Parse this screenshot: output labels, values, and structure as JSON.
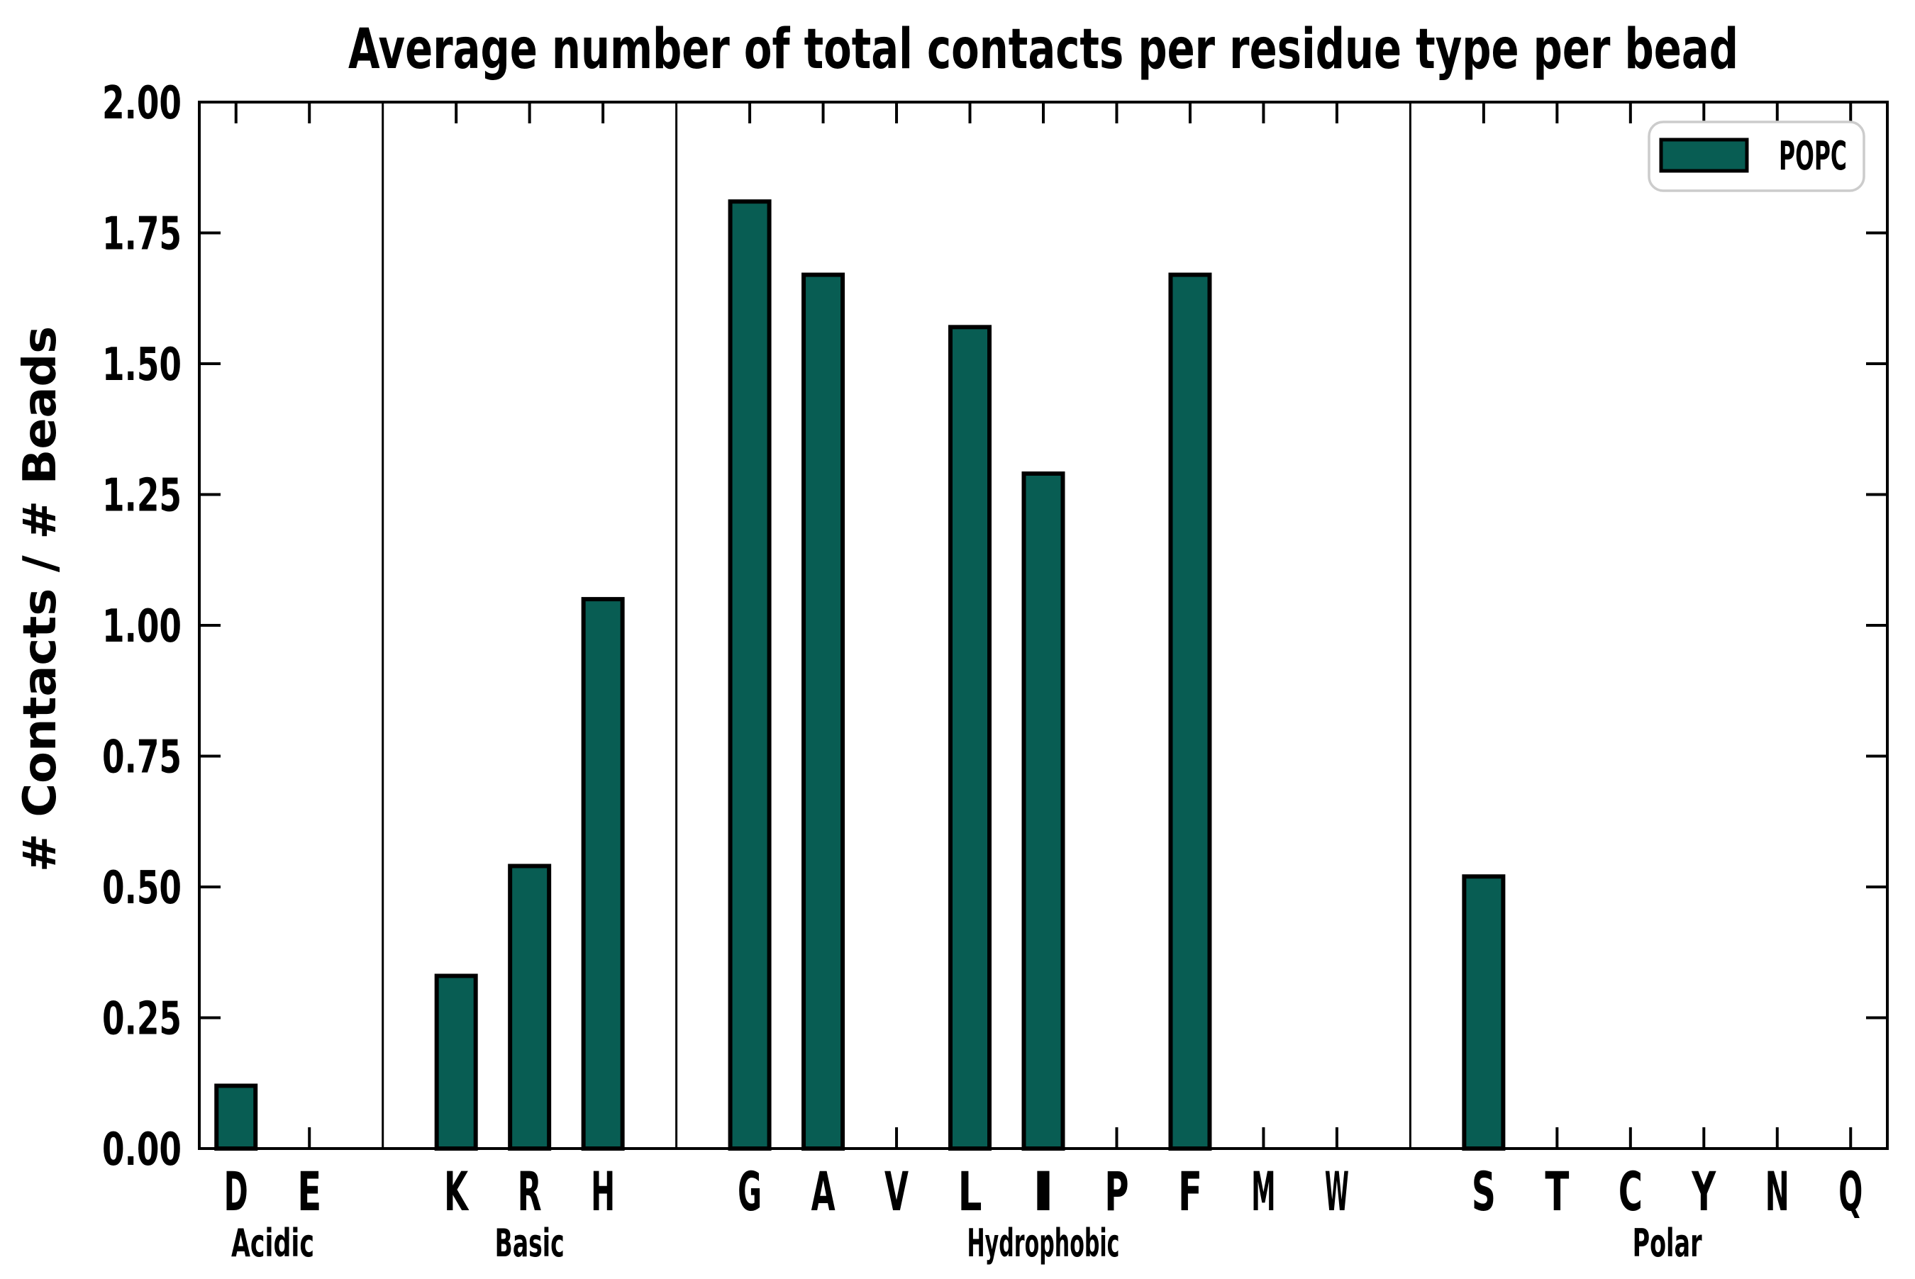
{
  "chart_data": {
    "type": "bar",
    "title": "Average number of total contacts per residue type per bead",
    "ylabel": "# Contacts / # Beads",
    "xlabel": "",
    "ylim": [
      0.0,
      2.0
    ],
    "ytick_step": 0.25,
    "ytick_labels": [
      "0.00",
      "0.25",
      "0.50",
      "0.75",
      "1.00",
      "1.25",
      "1.50",
      "1.75",
      "2.00"
    ],
    "grid": false,
    "legend": {
      "entries": [
        "POPC"
      ],
      "position": "upper right"
    },
    "series_name": "POPC",
    "groups": [
      {
        "label": "Acidic",
        "categories": [
          "D",
          "E"
        ],
        "values": [
          0.12,
          0.0
        ]
      },
      {
        "label": "Basic",
        "categories": [
          "K",
          "R",
          "H"
        ],
        "values": [
          0.33,
          0.54,
          1.05
        ]
      },
      {
        "label": "Hydrophobic",
        "categories": [
          "G",
          "A",
          "V",
          "L",
          "I",
          "P",
          "F",
          "M",
          "W"
        ],
        "values": [
          1.81,
          1.67,
          0.0,
          1.57,
          1.29,
          0.0,
          1.67,
          0.0,
          0.0
        ]
      },
      {
        "label": "Polar",
        "categories": [
          "S",
          "T",
          "C",
          "Y",
          "N",
          "Q"
        ],
        "values": [
          0.52,
          0.0,
          0.0,
          0.0,
          0.0,
          0.0
        ]
      }
    ],
    "colors": {
      "bar_fill": "#085d53",
      "bar_edge": "#000000",
      "axis": "#000000",
      "legend_border": "#cccccc",
      "background": "#ffffff"
    }
  }
}
